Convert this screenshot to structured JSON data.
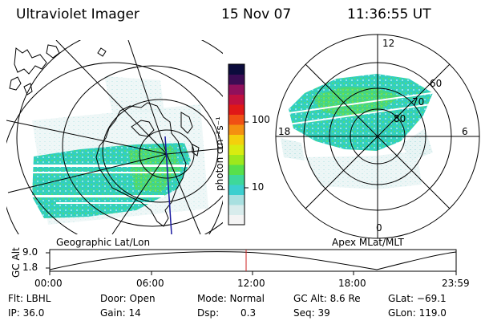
{
  "header": {
    "title": "Ultraviolet Imager",
    "date": "15 Nov 07",
    "time": "11:36:55 UT"
  },
  "geo_panel": {
    "label": "Geographic Lat/Lon"
  },
  "polar_panel": {
    "label": "Apex MLat/MLT",
    "mlt_labels": {
      "top": "12",
      "bottom": "0",
      "left": "18",
      "right": "6"
    },
    "lat_labels": [
      "60",
      "70",
      "80"
    ]
  },
  "colorbar": {
    "unit_label": "photon cm⁻²s⁻¹",
    "ticks": [
      "100",
      "10"
    ],
    "scale": "log",
    "colors": [
      "#f4f4f4",
      "#d8ecec",
      "#a8e0e0",
      "#3ccfcf",
      "#3ed89a",
      "#58e04a",
      "#9ee81c",
      "#d8ec10",
      "#f4d00c",
      "#f49010",
      "#f05014",
      "#e01818",
      "#c01040",
      "#90105c",
      "#3c0c54",
      "#0c0c3c"
    ]
  },
  "altitude_plot": {
    "ylabel": "GC Alt",
    "yticks": [
      "9.0",
      "1.8"
    ],
    "xticks": [
      "00:00",
      "06:00",
      "12:00",
      "18:00",
      "23:59"
    ],
    "current_marker_color": "#cc2222"
  },
  "status": {
    "flt": "Flt: LBHL",
    "door": "Door: Open",
    "mode": "Mode: Normal",
    "gc_alt": "GC Alt: 8.6 Re",
    "glat": "GLat: −69.1",
    "ip": "IP: 36.0",
    "gain": "Gain: 14",
    "dsp_label": "Dsp:",
    "dsp_value": "0.3",
    "seq": "Seq: 39",
    "glon": "GLon: 119.0"
  }
}
